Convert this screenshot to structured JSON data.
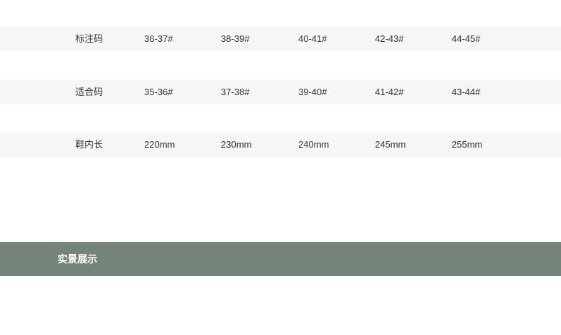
{
  "size_table": {
    "rows": [
      {
        "label": "标注码",
        "values": [
          "36-37#",
          "38-39#",
          "40-41#",
          "42-43#",
          "44-45#"
        ]
      },
      {
        "label": "适合码",
        "values": [
          "35-36#",
          "37-38#",
          "39-40#",
          "41-42#",
          "43-44#"
        ]
      },
      {
        "label": "鞋内长",
        "values": [
          "220mm",
          "230mm",
          "240mm",
          "245mm",
          "255mm"
        ]
      }
    ]
  },
  "section_banner": {
    "title": "实景展示",
    "color": "#74847a"
  }
}
